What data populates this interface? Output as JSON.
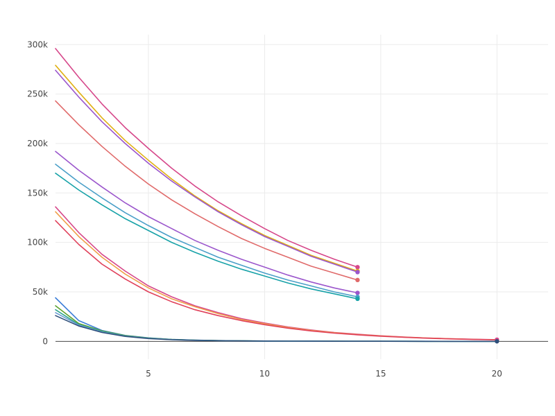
{
  "chart_data": {
    "type": "line",
    "title": "",
    "xlabel": "",
    "ylabel": "",
    "xlim": [
      1,
      22.2
    ],
    "ylim": [
      -18000,
      310000
    ],
    "x_ticks": [
      {
        "value": 5,
        "label": "5"
      },
      {
        "value": 10,
        "label": "10"
      },
      {
        "value": 15,
        "label": "15"
      },
      {
        "value": 20,
        "label": "20"
      }
    ],
    "y_ticks": [
      {
        "value": 0,
        "label": "0"
      },
      {
        "value": 50000,
        "label": "50k"
      },
      {
        "value": 100000,
        "label": "100k"
      },
      {
        "value": 150000,
        "label": "150k"
      },
      {
        "value": 200000,
        "label": "200k"
      },
      {
        "value": 250000,
        "label": "250k"
      },
      {
        "value": 300000,
        "label": "300k"
      }
    ],
    "grid": true,
    "series": [
      {
        "color": "#d6478a",
        "marker_end": true,
        "x": [
          1,
          2,
          3,
          4,
          5,
          6,
          7,
          8,
          9,
          10,
          11,
          12,
          13,
          14
        ],
        "y": [
          296000,
          267000,
          240000,
          216000,
          195000,
          175000,
          157000,
          141000,
          127000,
          114000,
          102000,
          92000,
          83000,
          75000
        ]
      },
      {
        "color": "#e0b012",
        "marker_end": true,
        "x": [
          1,
          2,
          3,
          4,
          5,
          6,
          7,
          8,
          9,
          10,
          11,
          12,
          13,
          14
        ],
        "y": [
          279000,
          252000,
          226000,
          203000,
          183000,
          164000,
          147000,
          132000,
          119000,
          107000,
          97000,
          87000,
          79000,
          71000
        ]
      },
      {
        "color": "#9b56cc",
        "marker_end": true,
        "x": [
          1,
          2,
          3,
          4,
          5,
          6,
          7,
          8,
          9,
          10,
          11,
          12,
          13,
          14
        ],
        "y": [
          274000,
          247000,
          222000,
          200000,
          180000,
          162000,
          146000,
          131000,
          118000,
          106000,
          96000,
          86000,
          78000,
          70000
        ]
      },
      {
        "color": "#e06a6a",
        "marker_end": true,
        "x": [
          1,
          2,
          3,
          4,
          5,
          6,
          7,
          8,
          9,
          10,
          11,
          12,
          13,
          14
        ],
        "y": [
          243000,
          219000,
          197000,
          177000,
          159000,
          143000,
          129000,
          116000,
          104000,
          94000,
          85000,
          76000,
          69000,
          62000
        ]
      },
      {
        "color": "#9b56cc",
        "marker_end": true,
        "x": [
          1,
          2,
          3,
          4,
          5,
          6,
          7,
          8,
          9,
          10,
          11,
          12,
          13,
          14
        ],
        "y": [
          192000,
          173000,
          156000,
          140000,
          126000,
          114000,
          102000,
          92000,
          83000,
          75000,
          67000,
          60000,
          54000,
          49000
        ]
      },
      {
        "color": "#4a9fc8",
        "marker_end": true,
        "x": [
          1,
          2,
          3,
          4,
          5,
          6,
          7,
          8,
          9,
          10,
          11,
          12,
          13,
          14
        ],
        "y": [
          179000,
          161000,
          145000,
          130000,
          117000,
          105000,
          95000,
          85000,
          77000,
          69000,
          62000,
          56000,
          50000,
          45000
        ]
      },
      {
        "color": "#17a2a8",
        "marker_end": true,
        "x": [
          1,
          2,
          3,
          4,
          5,
          6,
          7,
          8,
          9,
          10,
          11,
          12,
          13,
          14
        ],
        "y": [
          170000,
          153000,
          138000,
          124000,
          112000,
          100000,
          90000,
          81000,
          73000,
          66000,
          59000,
          53000,
          48000,
          43000
        ]
      },
      {
        "color": "#d6478a",
        "marker_end": true,
        "x": [
          1,
          2,
          3,
          4,
          5,
          6,
          7,
          8,
          9,
          10,
          11,
          12,
          13,
          14,
          15,
          16,
          17,
          18,
          19,
          20
        ],
        "y": [
          136000,
          110000,
          88000,
          71000,
          56000,
          45000,
          36000,
          29000,
          23000,
          18500,
          14500,
          11500,
          9000,
          7200,
          5600,
          4400,
          3400,
          2700,
          2100,
          1700
        ]
      },
      {
        "color": "#f0a04b",
        "marker_end": false,
        "x": [
          1,
          2,
          3,
          4,
          5,
          6,
          7,
          8,
          9,
          10,
          11,
          12,
          13,
          14,
          15,
          16,
          17,
          18,
          19,
          20
        ],
        "y": [
          131000,
          106000,
          85000,
          68000,
          54000,
          43000,
          35000,
          28000,
          22000,
          17800,
          14000,
          11000,
          8700,
          6900,
          5400,
          4200,
          3300,
          2600,
          2000,
          1600
        ]
      },
      {
        "color": "#e0405a",
        "marker_end": false,
        "x": [
          1,
          2,
          3,
          4,
          5,
          6,
          7,
          8,
          9,
          10,
          11,
          12,
          13,
          14,
          15,
          16,
          17,
          18,
          19,
          20
        ],
        "y": [
          122000,
          98000,
          78000,
          63000,
          50000,
          40000,
          32000,
          26000,
          21000,
          16800,
          13300,
          10500,
          8300,
          6600,
          5200,
          4100,
          3200,
          2500,
          1900,
          1500
        ]
      },
      {
        "color": "#3b7dd8",
        "marker_end": false,
        "x": [
          1,
          2,
          3,
          4,
          5,
          6,
          7,
          8,
          9,
          10,
          11,
          12,
          13,
          14,
          15,
          16,
          17,
          18,
          19,
          20
        ],
        "y": [
          44000,
          21000,
          11000,
          6000,
          3500,
          2000,
          1200,
          800,
          500,
          350,
          250,
          180,
          130,
          100,
          80,
          60,
          50,
          40,
          30,
          20
        ]
      },
      {
        "color": "#5aa02c",
        "marker_end": false,
        "x": [
          1,
          2,
          3,
          4,
          5,
          6,
          7,
          8,
          9,
          10,
          11,
          12,
          13,
          14,
          15,
          16,
          17,
          18,
          19,
          20
        ],
        "y": [
          36000,
          18000,
          10500,
          5800,
          3300,
          1900,
          1150,
          750,
          480,
          330,
          240,
          170,
          120,
          95,
          75,
          55,
          45,
          35,
          25,
          18
        ]
      },
      {
        "color": "#2ca58d",
        "marker_end": false,
        "x": [
          1,
          2,
          3,
          4,
          5,
          6,
          7,
          8,
          9,
          10,
          11,
          12,
          13,
          14,
          15,
          16,
          17,
          18,
          19,
          20
        ],
        "y": [
          32000,
          17000,
          10000,
          5500,
          3200,
          1850,
          1100,
          720,
          460,
          320,
          230,
          165,
          115,
          90,
          70,
          52,
          42,
          33,
          24,
          17
        ]
      },
      {
        "color": "#6a9bd4",
        "marker_end": false,
        "x": [
          1,
          2,
          3,
          4,
          5,
          6,
          7,
          8,
          9,
          10,
          11,
          12,
          13,
          14,
          15,
          16,
          17,
          18,
          19,
          20
        ],
        "y": [
          29000,
          16500,
          9500,
          5200,
          3000,
          1750,
          1050,
          690,
          440,
          310,
          220,
          160,
          110,
          85,
          66,
          50,
          40,
          31,
          22,
          16
        ]
      },
      {
        "color": "#2e4f7a",
        "marker_end": true,
        "x": [
          1,
          2,
          3,
          4,
          5,
          6,
          7,
          8,
          9,
          10,
          11,
          12,
          13,
          14,
          15,
          16,
          17,
          18,
          19,
          20
        ],
        "y": [
          26000,
          15500,
          9000,
          5000,
          2800,
          1600,
          1000,
          650,
          420,
          290,
          210,
          150,
          105,
          80,
          62,
          47,
          37,
          29,
          21,
          15
        ]
      }
    ]
  }
}
